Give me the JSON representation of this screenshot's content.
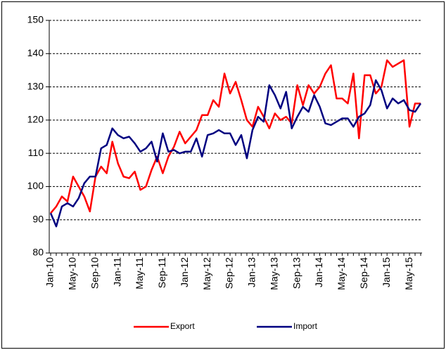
{
  "chart_data": {
    "type": "line",
    "categories": [
      "Jan-10",
      null,
      null,
      null,
      "May-10",
      null,
      null,
      null,
      "Sep-10",
      null,
      null,
      null,
      "Jan-11",
      null,
      null,
      null,
      "May-11",
      null,
      null,
      null,
      "Sep-11",
      null,
      null,
      null,
      "Jan-12",
      null,
      null,
      null,
      "May-12",
      null,
      null,
      null,
      "Sep-12",
      null,
      null,
      null,
      "Jan-13",
      null,
      null,
      null,
      "May-13",
      null,
      null,
      null,
      "Sep-13",
      null,
      null,
      null,
      "Jan-14",
      null,
      null,
      null,
      "May-14",
      null,
      null,
      null,
      "Sep-14",
      null,
      null,
      null,
      "Jan-15",
      null,
      null,
      null,
      "May-15",
      null,
      null
    ],
    "series": [
      {
        "name": "Export",
        "color": "#ff0000",
        "values": [
          92,
          94,
          97,
          95.5,
          103,
          100,
          97,
          92.5,
          103,
          106,
          104,
          113.5,
          107,
          103,
          102.5,
          104.5,
          99,
          100,
          105,
          109,
          104,
          109,
          112,
          116.5,
          113,
          115,
          117,
          121.5,
          121.5,
          126,
          124,
          134,
          128,
          131.5,
          126,
          120,
          118,
          124,
          121,
          117.5,
          122,
          120,
          121,
          119,
          130.5,
          124.5,
          130.5,
          128,
          130,
          134,
          136.5,
          126.5,
          126.5,
          125,
          134,
          114.5,
          133.5,
          133.5,
          128,
          130,
          138,
          136,
          137,
          138,
          118,
          125,
          125
        ]
      },
      {
        "name": "Import",
        "color": "#000080",
        "values": [
          92,
          88,
          94,
          95,
          94,
          96.5,
          101,
          103,
          103,
          111.5,
          112.5,
          117.5,
          115.5,
          114.5,
          115,
          113,
          110.5,
          111.5,
          113.5,
          107.5,
          116,
          110.5,
          111,
          110,
          110.5,
          110.5,
          114.5,
          109,
          115.5,
          116,
          117,
          116,
          116,
          112.5,
          115.5,
          108.5,
          117,
          121,
          119.5,
          130.5,
          127.5,
          123.5,
          128.5,
          117.5,
          121,
          124,
          122.5,
          127.5,
          124,
          119,
          118.5,
          119.5,
          120.5,
          120.5,
          118,
          121,
          122,
          124.5,
          132,
          129,
          123.5,
          126.5,
          125,
          126,
          123,
          122.5,
          125
        ]
      }
    ],
    "ylim": [
      80,
      150
    ],
    "yticks": [
      80,
      90,
      100,
      110,
      120,
      130,
      140,
      150
    ],
    "grid": true,
    "legend": "bottom"
  }
}
